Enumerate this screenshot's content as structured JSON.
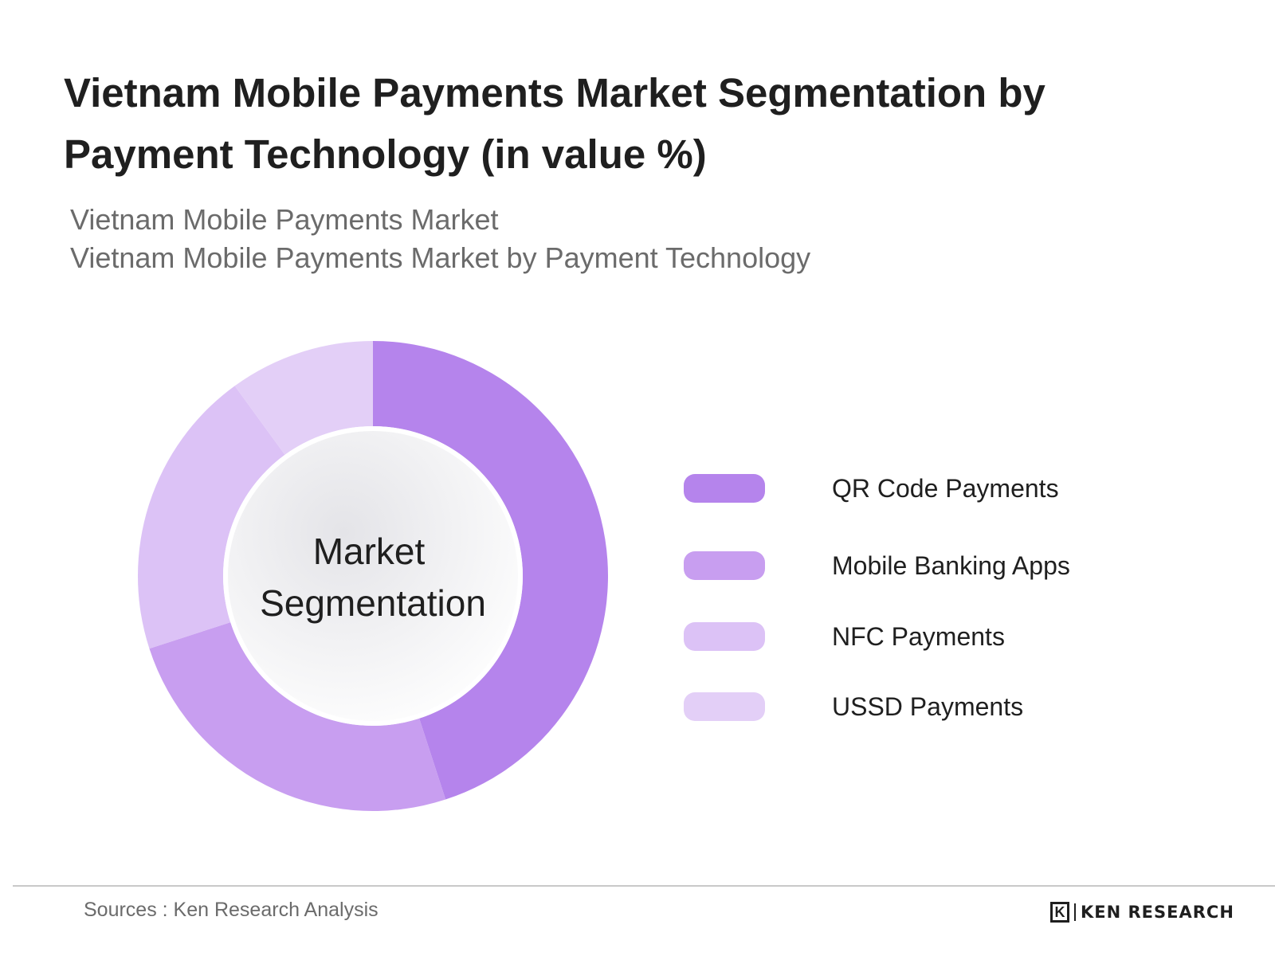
{
  "title": "Vietnam Mobile Payments Market Segmentation by Payment Technology (in value %)",
  "subtitle_lines": [
    "Vietnam Mobile Payments Market",
    "Vietnam Mobile Payments Market by Payment Technology"
  ],
  "chart_data": {
    "type": "pie",
    "donut": true,
    "center_label": [
      "Market",
      "Segmentation"
    ],
    "legend_position": "right",
    "series": [
      {
        "name": "QR Code Payments",
        "value": 45,
        "color": "#b584ec"
      },
      {
        "name": "Mobile Banking Apps",
        "value": 25,
        "color": "#c89ef0"
      },
      {
        "name": "NFC Payments",
        "value": 20,
        "color": "#dcc2f6"
      },
      {
        "name": "USSD Payments",
        "value": 10,
        "color": "#e3cff7"
      }
    ]
  },
  "footer": {
    "source": "Sources : Ken Research Analysis",
    "brand_mark": "K",
    "brand": "KEN RESEARCH"
  }
}
